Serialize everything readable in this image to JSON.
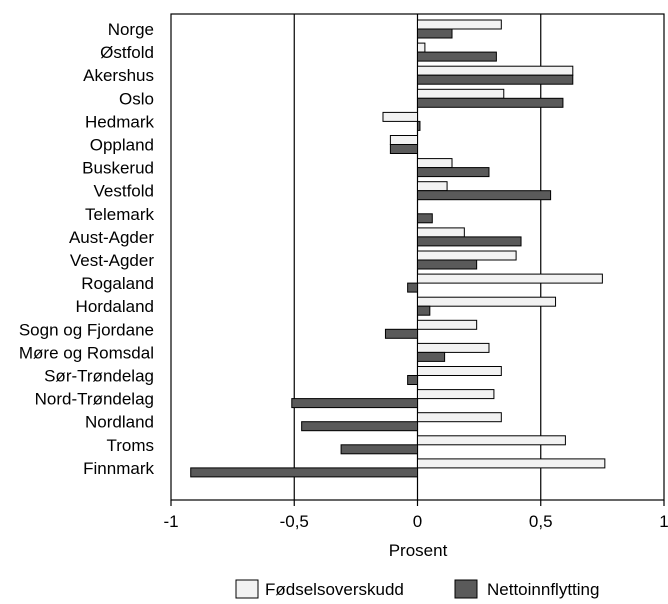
{
  "chart_data": {
    "type": "bar",
    "orientation": "horizontal",
    "categories": [
      "Norge",
      "Østfold",
      "Akershus",
      "Oslo",
      "Hedmark",
      "Oppland",
      "Buskerud",
      "Vestfold",
      "Telemark",
      "Aust-Agder",
      "Vest-Agder",
      "Rogaland",
      "Hordaland",
      "Sogn og Fjordane",
      "Møre og Romsdal",
      "Sør-Trøndelag",
      "Nord-Trøndelag",
      "Nordland",
      "Troms",
      "Finnmark"
    ],
    "series": [
      {
        "name": "Fødselsoverskudd",
        "color": "#f2f2f2",
        "values": [
          0.34,
          0.03,
          0.63,
          0.35,
          -0.14,
          -0.11,
          0.14,
          0.12,
          0.0,
          0.19,
          0.4,
          0.75,
          0.56,
          0.24,
          0.29,
          0.34,
          0.31,
          0.34,
          0.6,
          0.76
        ]
      },
      {
        "name": "Nettoinnflytting",
        "color": "#5a5a5a",
        "values": [
          0.14,
          0.32,
          0.63,
          0.59,
          0.01,
          -0.11,
          0.29,
          0.54,
          0.06,
          0.42,
          0.24,
          -0.04,
          0.05,
          -0.13,
          0.11,
          -0.04,
          -0.51,
          -0.47,
          -0.31,
          -0.92
        ]
      }
    ],
    "xlim": [
      -1,
      1
    ],
    "xticks": [
      -1,
      -0.5,
      0,
      0.5,
      1
    ],
    "xtick_labels": [
      "-1",
      "-0,5",
      "0",
      "0,5",
      "1"
    ],
    "xlabel": "Prosent",
    "ylabel": "",
    "title": "",
    "gridlines_x": [
      -0.5,
      0,
      0.5
    ],
    "legend_position": "bottom"
  }
}
